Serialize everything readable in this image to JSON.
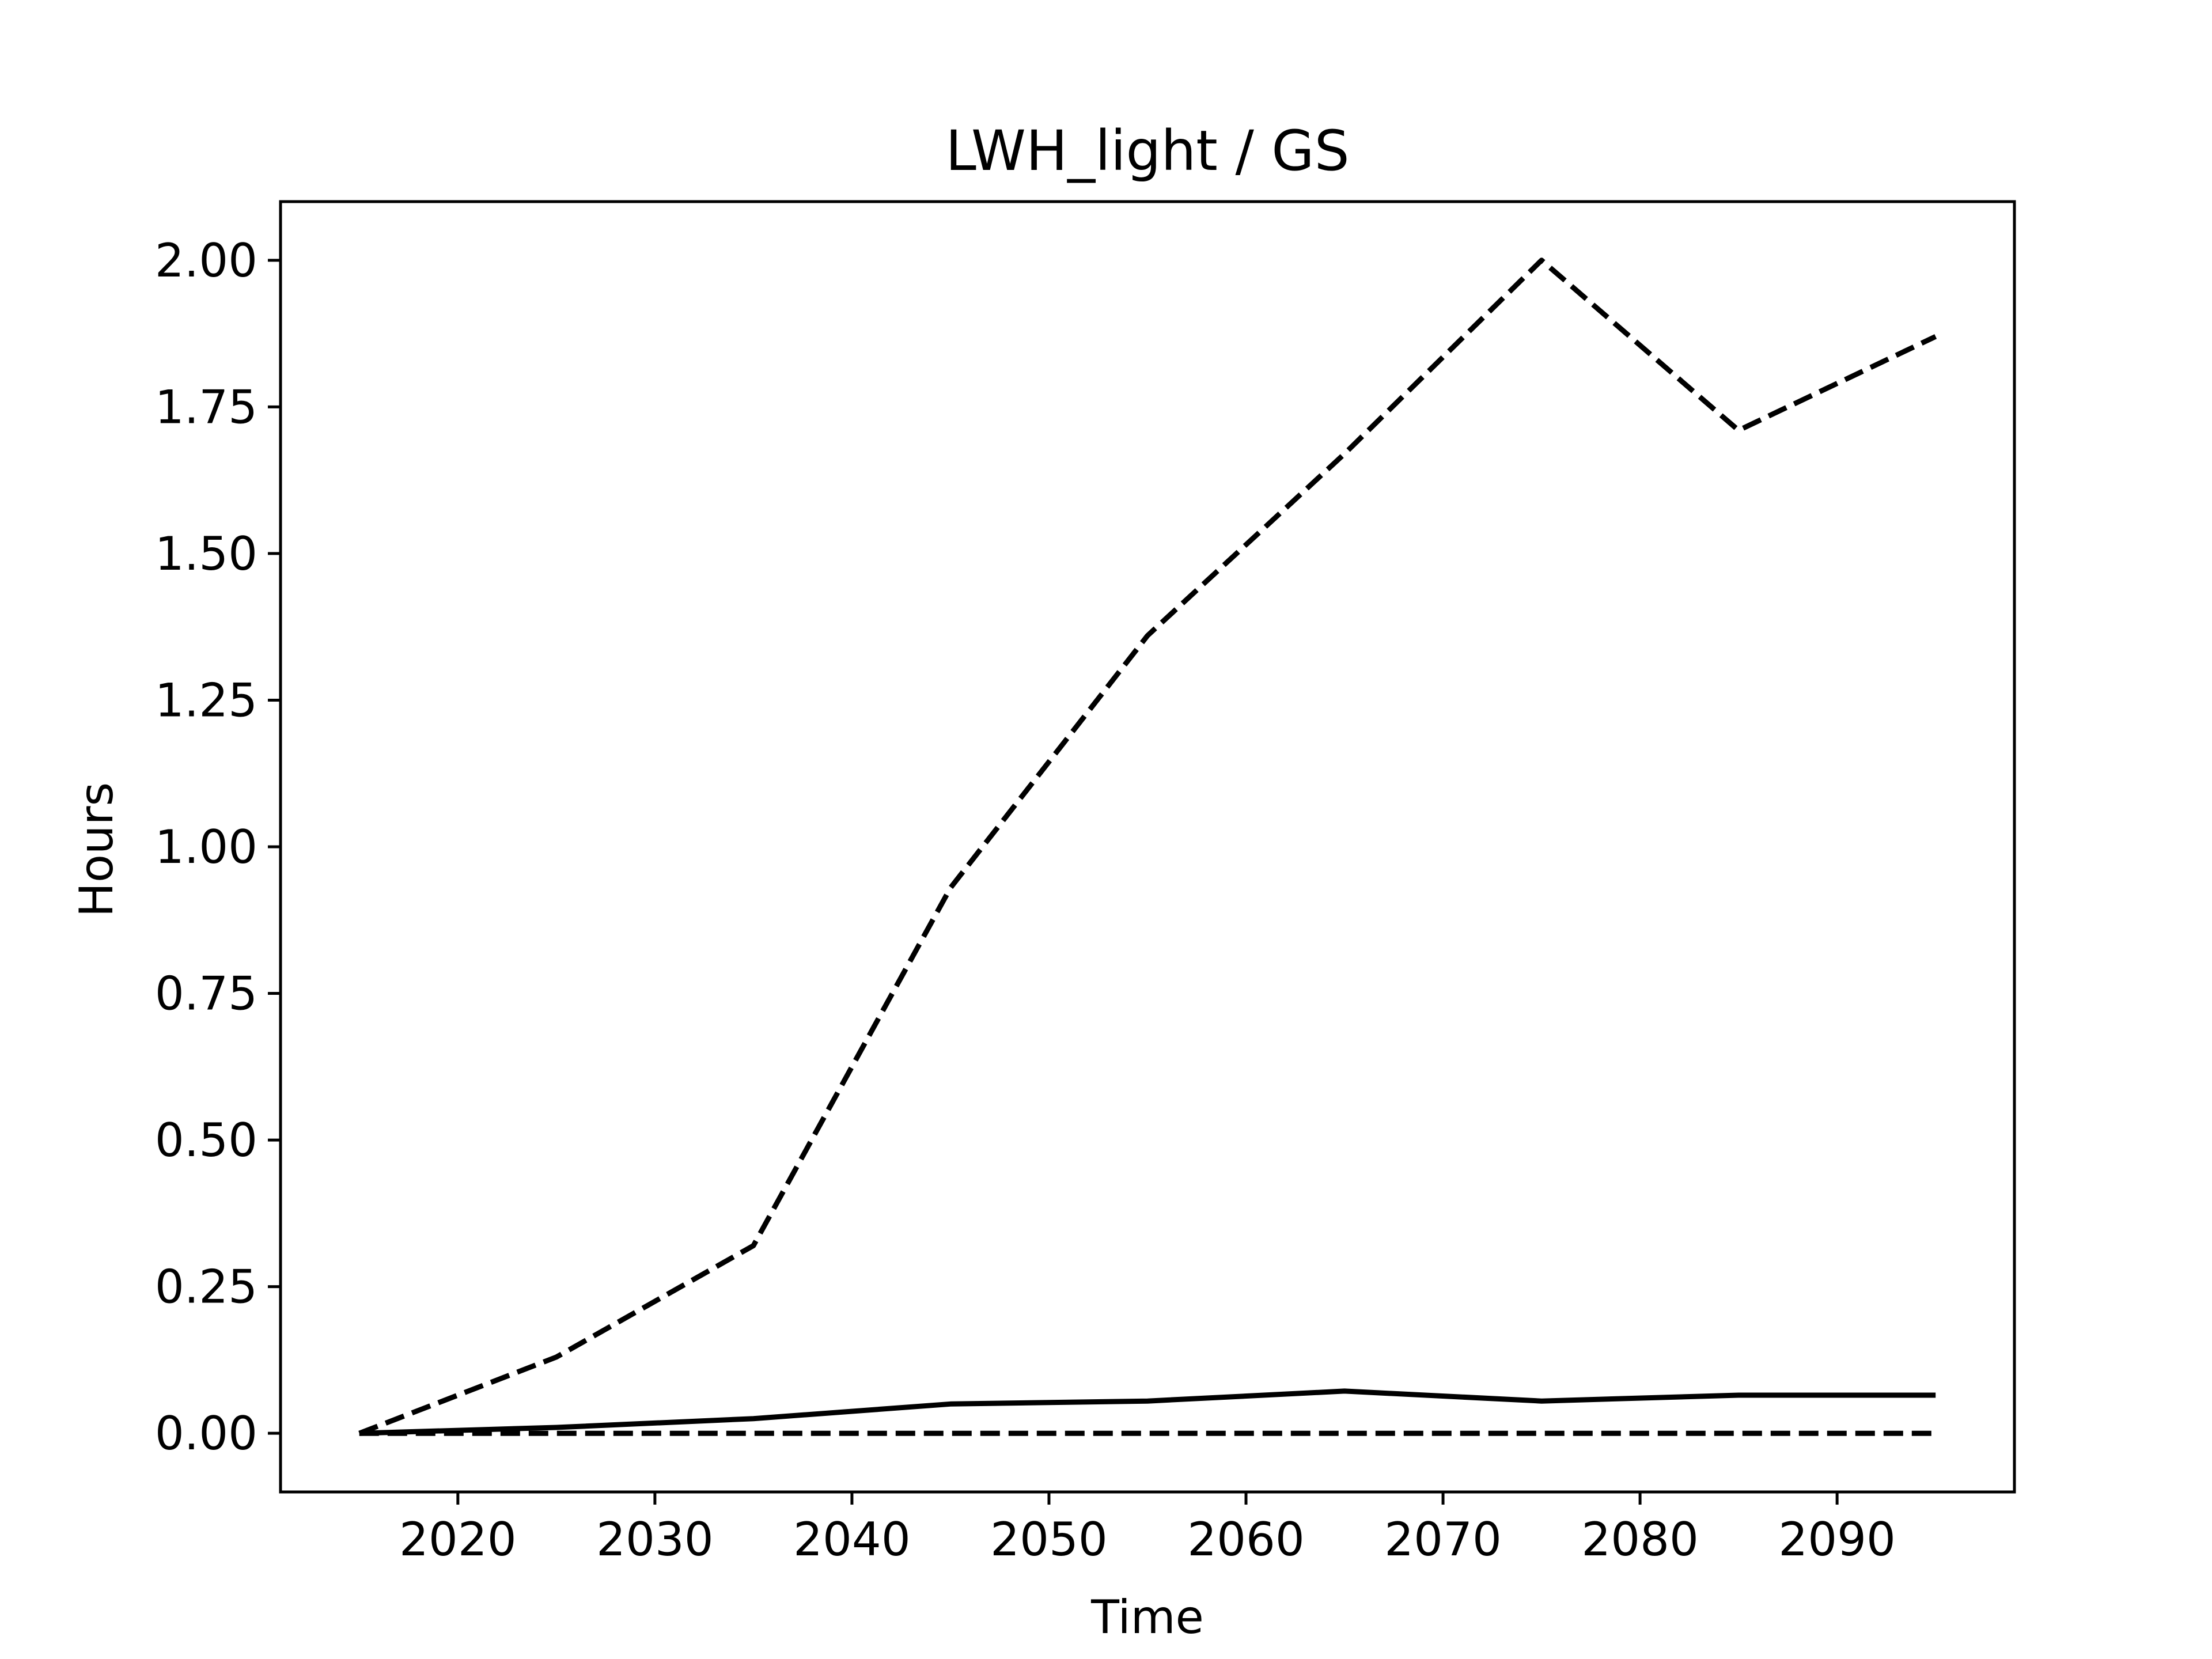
{
  "chart_data": {
    "type": "line",
    "title": "LWH_light / GS",
    "xlabel": "Time",
    "ylabel": "Hours",
    "xlim": [
      2011,
      2099
    ],
    "ylim": [
      -0.1,
      2.1
    ],
    "x_ticks": [
      2020,
      2030,
      2040,
      2050,
      2060,
      2070,
      2080,
      2090
    ],
    "y_ticks": [
      0.0,
      0.25,
      0.5,
      0.75,
      1.0,
      1.25,
      1.5,
      1.75,
      2.0
    ],
    "y_tick_labels": [
      "0.00",
      "0.25",
      "0.50",
      "0.75",
      "1.00",
      "1.25",
      "1.50",
      "1.75",
      "2.00"
    ],
    "grid": false,
    "legend": "none",
    "x": [
      2015,
      2025,
      2035,
      2045,
      2055,
      2065,
      2075,
      2085,
      2095
    ],
    "series": [
      {
        "style": "dashed",
        "color": "#000000",
        "values": [
          0.0,
          0.13,
          0.32,
          0.93,
          1.36,
          1.67,
          2.0,
          1.71,
          1.87
        ]
      },
      {
        "style": "solid",
        "color": "#000000",
        "values": [
          0.0,
          0.01,
          0.025,
          0.05,
          0.055,
          0.072,
          0.055,
          0.065,
          0.065
        ]
      },
      {
        "style": "dashed",
        "color": "#000000",
        "values": [
          0.0,
          0.0,
          0.0,
          0.0,
          0.0,
          0.0,
          0.0,
          0.0,
          0.0
        ]
      }
    ]
  }
}
